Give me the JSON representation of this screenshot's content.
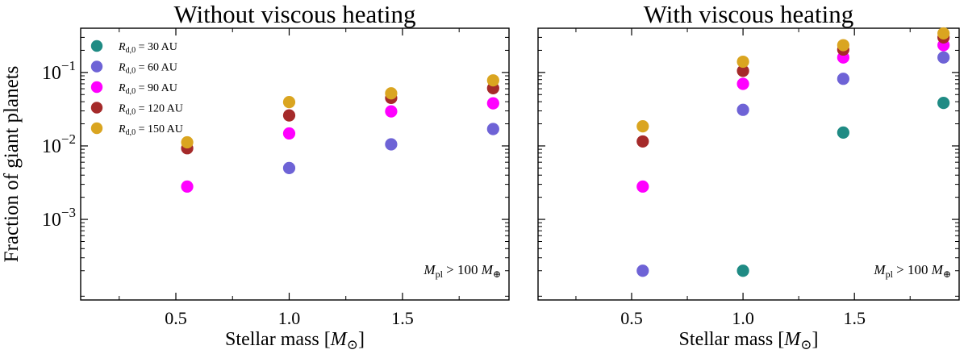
{
  "chart_data": [
    {
      "type": "scatter",
      "title": "Without viscous heating",
      "xlabel": "Stellar mass [M⊙]",
      "ylabel": "Fraction of giant planets",
      "xscale": "linear",
      "yscale": "log",
      "xlim": [
        0.08,
        1.97
      ],
      "ylim": [
        8e-05,
        0.4
      ],
      "x_ticks": [
        0.5,
        1.0,
        1.5
      ],
      "x_tick_labels": [
        "0.5",
        "1.0",
        "1.5"
      ],
      "y_ticks": [
        0.001,
        0.01,
        0.1
      ],
      "y_tick_labels": [
        "10−3",
        "10−2",
        "10−1"
      ],
      "annotation": "Mpl > 100 M⊕",
      "legend": {
        "placement": "top-left"
      },
      "series": [
        {
          "name": "Rd,0 = 30 AU",
          "name_parts": {
            "main": "R",
            "sub": "d,0",
            "rest": " = 30 AU"
          },
          "color": "#1f8b84",
          "points": []
        },
        {
          "name": "Rd,0 = 60 AU",
          "name_parts": {
            "main": "R",
            "sub": "d,0",
            "rest": " = 60 AU"
          },
          "color": "#6e63d6",
          "points": [
            {
              "x": 1.0,
              "y": 0.005
            },
            {
              "x": 1.45,
              "y": 0.0105
            },
            {
              "x": 1.9,
              "y": 0.017
            }
          ]
        },
        {
          "name": "Rd,0 = 90 AU",
          "name_parts": {
            "main": "R",
            "sub": "d,0",
            "rest": " = 90 AU"
          },
          "color": "#ff00ff",
          "points": [
            {
              "x": 0.55,
              "y": 0.0028
            },
            {
              "x": 1.0,
              "y": 0.0148
            },
            {
              "x": 1.45,
              "y": 0.0295
            },
            {
              "x": 1.9,
              "y": 0.038
            }
          ]
        },
        {
          "name": "Rd,0 = 120 AU",
          "name_parts": {
            "main": "R",
            "sub": "d,0",
            "rest": " = 120 AU"
          },
          "color": "#a52a2a",
          "points": [
            {
              "x": 0.55,
              "y": 0.0093
            },
            {
              "x": 1.0,
              "y": 0.026
            },
            {
              "x": 1.45,
              "y": 0.045
            },
            {
              "x": 1.9,
              "y": 0.061
            }
          ]
        },
        {
          "name": "Rd,0 = 150 AU",
          "name_parts": {
            "main": "R",
            "sub": "d,0",
            "rest": " = 150 AU"
          },
          "color": "#daa520",
          "points": [
            {
              "x": 0.55,
              "y": 0.0112
            },
            {
              "x": 1.0,
              "y": 0.0395
            },
            {
              "x": 1.45,
              "y": 0.052
            },
            {
              "x": 1.9,
              "y": 0.078
            }
          ]
        }
      ]
    },
    {
      "type": "scatter",
      "title": "With viscous heating",
      "xlabel": "Stellar mass [M⊙]",
      "ylabel": "",
      "xscale": "linear",
      "yscale": "log",
      "xlim": [
        0.08,
        1.97
      ],
      "ylim": [
        8e-05,
        0.4
      ],
      "x_ticks": [
        0.5,
        1.0,
        1.5
      ],
      "x_tick_labels": [
        "0.5",
        "1.0",
        "1.5"
      ],
      "y_ticks": [
        0.001,
        0.01,
        0.1
      ],
      "y_tick_labels": [
        "",
        "",
        ""
      ],
      "annotation": "Mpl > 100 M⊕",
      "series": [
        {
          "name": "Rd,0 = 30 AU",
          "color": "#1f8b84",
          "points": [
            {
              "x": 1.0,
              "y": 0.0002
            },
            {
              "x": 1.45,
              "y": 0.0152
            },
            {
              "x": 1.9,
              "y": 0.0385
            }
          ]
        },
        {
          "name": "Rd,0 = 60 AU",
          "color": "#6e63d6",
          "points": [
            {
              "x": 0.55,
              "y": 0.0002
            },
            {
              "x": 1.0,
              "y": 0.031
            },
            {
              "x": 1.45,
              "y": 0.082
            },
            {
              "x": 1.9,
              "y": 0.16
            }
          ]
        },
        {
          "name": "Rd,0 = 90 AU",
          "color": "#ff00ff",
          "points": [
            {
              "x": 0.55,
              "y": 0.0028
            },
            {
              "x": 1.0,
              "y": 0.07
            },
            {
              "x": 1.45,
              "y": 0.16
            },
            {
              "x": 1.9,
              "y": 0.235
            }
          ]
        },
        {
          "name": "Rd,0 = 120 AU",
          "color": "#a52a2a",
          "points": [
            {
              "x": 0.55,
              "y": 0.0115
            },
            {
              "x": 1.0,
              "y": 0.105
            },
            {
              "x": 1.45,
              "y": 0.205
            },
            {
              "x": 1.9,
              "y": 0.3
            }
          ]
        },
        {
          "name": "Rd,0 = 150 AU",
          "color": "#daa520",
          "points": [
            {
              "x": 0.55,
              "y": 0.0185
            },
            {
              "x": 1.0,
              "y": 0.14
            },
            {
              "x": 1.45,
              "y": 0.235
            },
            {
              "x": 1.9,
              "y": 0.34
            }
          ]
        }
      ]
    }
  ]
}
